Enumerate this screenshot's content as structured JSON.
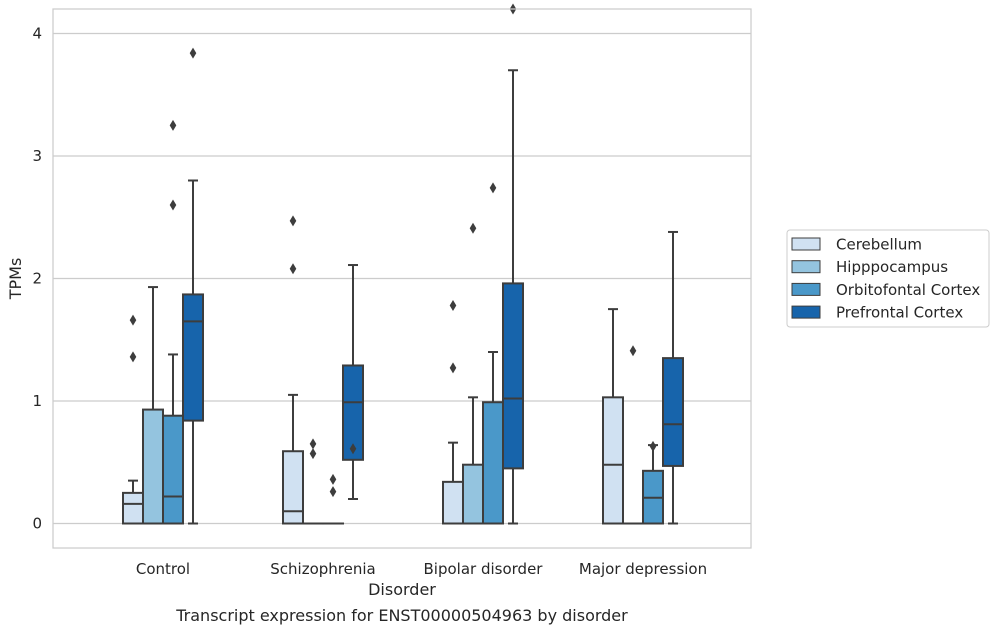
{
  "chart_data": {
    "type": "box",
    "title": "Transcript expression for ENST00000504963 by disorder",
    "xlabel": "Disorder",
    "ylabel": "TPMs",
    "ylim": [
      -0.2,
      4.2
    ],
    "yticks": [
      0,
      1,
      2,
      3,
      4
    ],
    "grid": true,
    "legend_position": "right",
    "categories": [
      "Control",
      "Schizophrenia",
      "Bipolar disorder",
      "Major depression"
    ],
    "series": [
      {
        "name": "Cerebellum",
        "color": "#d0e1f2",
        "boxes": [
          {
            "whislo": 0,
            "q1": 0,
            "med": 0.16,
            "q3": 0.25,
            "whishi": 0.35,
            "fliers": [
              1.36,
              1.66
            ]
          },
          {
            "whislo": 0,
            "q1": 0,
            "med": 0.1,
            "q3": 0.59,
            "whishi": 1.05,
            "fliers": [
              2.08,
              2.47
            ]
          },
          {
            "whislo": 0,
            "q1": 0,
            "med": 0,
            "q3": 0.34,
            "whishi": 0.66,
            "fliers": [
              1.27,
              1.78
            ]
          },
          {
            "whislo": 0,
            "q1": 0,
            "med": 0.48,
            "q3": 1.03,
            "whishi": 1.75,
            "fliers": []
          }
        ]
      },
      {
        "name": "Hipppocampus",
        "color": "#94c4df",
        "boxes": [
          {
            "whislo": 0,
            "q1": 0,
            "med": 0,
            "q3": 0.93,
            "whishi": 1.93,
            "fliers": []
          },
          {
            "whislo": 0,
            "q1": 0,
            "med": 0,
            "q3": 0,
            "whishi": 0,
            "fliers": [
              0.57,
              0.65
            ]
          },
          {
            "whislo": 0,
            "q1": 0,
            "med": 0,
            "q3": 0.48,
            "whishi": 1.03,
            "fliers": [
              2.41
            ]
          },
          {
            "whislo": 0,
            "q1": 0,
            "med": 0,
            "q3": 0,
            "whishi": 0,
            "fliers": [
              1.41
            ]
          }
        ]
      },
      {
        "name": "Orbitofontal Cortex",
        "color": "#4a98c9",
        "boxes": [
          {
            "whislo": 0,
            "q1": 0,
            "med": 0.22,
            "q3": 0.88,
            "whishi": 1.38,
            "fliers": [
              2.6,
              3.25
            ]
          },
          {
            "whislo": 0,
            "q1": 0,
            "med": 0,
            "q3": 0,
            "whishi": 0,
            "fliers": [
              0.26,
              0.36
            ]
          },
          {
            "whislo": 0,
            "q1": 0,
            "med": 0,
            "q3": 0.99,
            "whishi": 1.4,
            "fliers": [
              2.74
            ]
          },
          {
            "whislo": 0,
            "q1": 0,
            "med": 0.21,
            "q3": 0.43,
            "whishi": 0.64,
            "fliers": [
              0.63
            ]
          }
        ]
      },
      {
        "name": "Prefrontal Cortex",
        "color": "#1764ab",
        "boxes": [
          {
            "whislo": 0,
            "q1": 0.84,
            "med": 1.65,
            "q3": 1.87,
            "whishi": 2.8,
            "fliers": [
              3.84
            ]
          },
          {
            "whislo": 0.2,
            "q1": 0.52,
            "med": 0.99,
            "q3": 1.29,
            "whishi": 2.11,
            "fliers": [
              0.61
            ]
          },
          {
            "whislo": 0,
            "q1": 0.45,
            "med": 1.02,
            "q3": 1.96,
            "whishi": 3.7,
            "fliers": [
              4.2
            ]
          },
          {
            "whislo": 0,
            "q1": 0.47,
            "med": 0.81,
            "q3": 1.35,
            "whishi": 2.38,
            "fliers": []
          }
        ]
      }
    ]
  }
}
